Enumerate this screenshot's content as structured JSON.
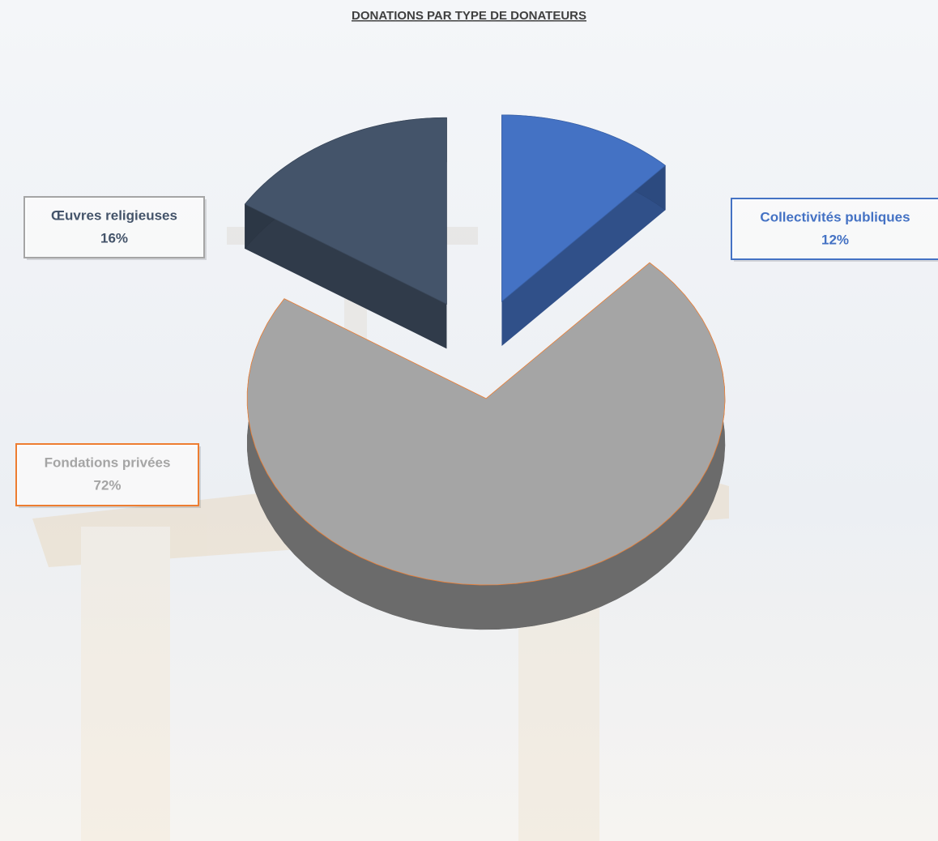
{
  "chart_data": {
    "type": "pie",
    "title": "DONATIONS PAR TYPE DE DONATEURS",
    "categories": [
      "Collectivités publiques",
      "Fondations privées",
      "Œuvres religieuses"
    ],
    "values": [
      12,
      72,
      16
    ],
    "value_labels": [
      "12%",
      "72%",
      "16%"
    ],
    "colors": [
      "#4472c4",
      "#a5a5a5",
      "#44546a"
    ],
    "label_border_colors": [
      "#4472c4",
      "#ed7d31",
      "#a5a5a5"
    ],
    "exploded": true,
    "three_d": true
  }
}
